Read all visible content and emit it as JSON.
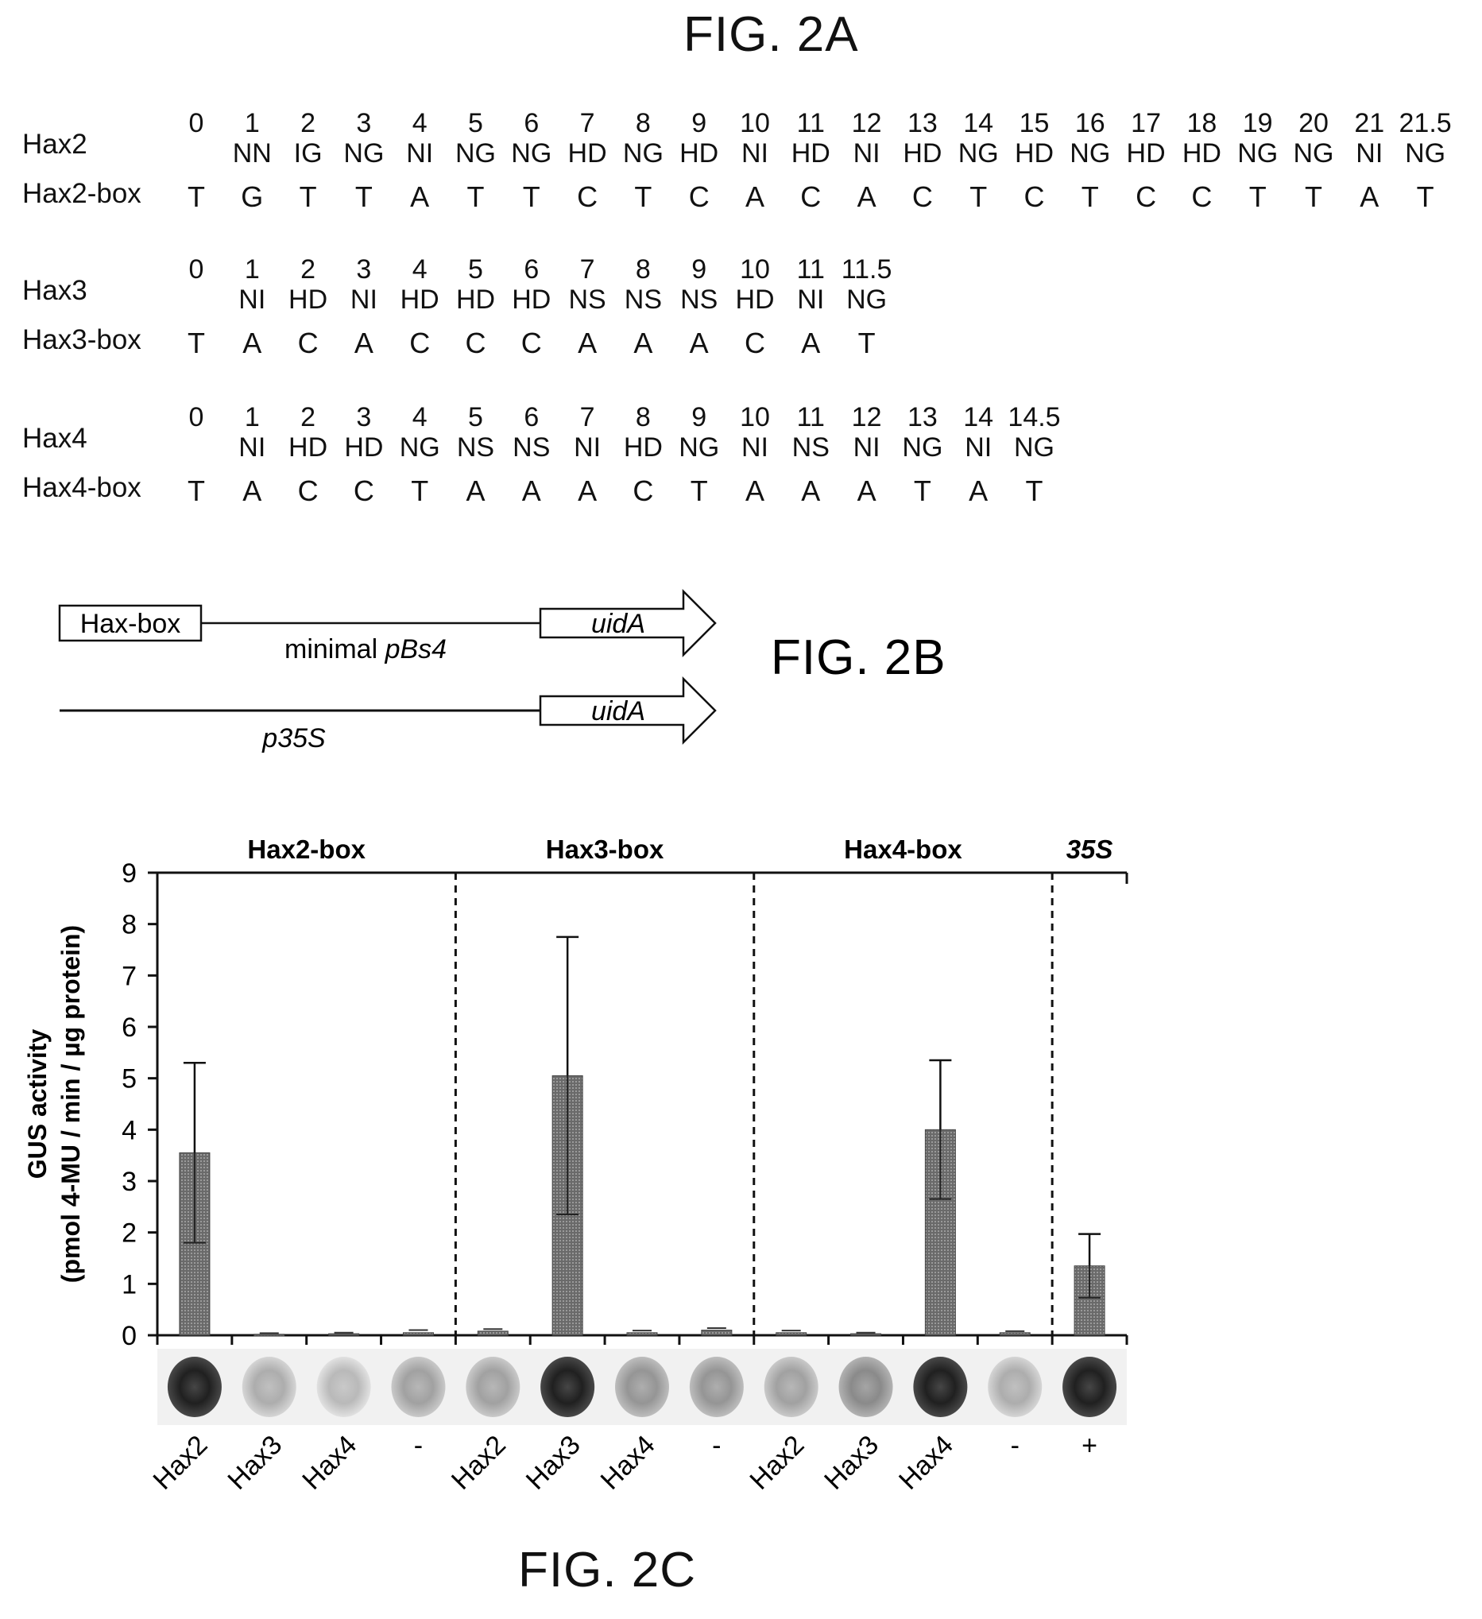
{
  "fig2a": {
    "title": "FIG. 2A",
    "rows": [
      {
        "name": "Hax2",
        "box_name": "Hax2-box",
        "numbers": [
          "0",
          "1",
          "2",
          "3",
          "4",
          "5",
          "6",
          "7",
          "8",
          "9",
          "10",
          "11",
          "12",
          "13",
          "14",
          "15",
          "16",
          "17",
          "18",
          "19",
          "20",
          "21",
          "21.5"
        ],
        "rvds": [
          "",
          "NN",
          "IG",
          "NG",
          "NI",
          "NG",
          "NG",
          "HD",
          "NG",
          "HD",
          "NI",
          "HD",
          "NI",
          "HD",
          "NG",
          "HD",
          "NG",
          "HD",
          "HD",
          "NG",
          "NG",
          "NI",
          "NG"
        ],
        "bases": [
          "T",
          "G",
          "T",
          "T",
          "A",
          "T",
          "T",
          "C",
          "T",
          "C",
          "A",
          "C",
          "A",
          "C",
          "T",
          "C",
          "T",
          "C",
          "C",
          "T",
          "T",
          "A",
          "T"
        ]
      },
      {
        "name": "Hax3",
        "box_name": "Hax3-box",
        "numbers": [
          "0",
          "1",
          "2",
          "3",
          "4",
          "5",
          "6",
          "7",
          "8",
          "9",
          "10",
          "11",
          "11.5"
        ],
        "rvds": [
          "",
          "NI",
          "HD",
          "NI",
          "HD",
          "HD",
          "HD",
          "NS",
          "NS",
          "NS",
          "HD",
          "NI",
          "NG"
        ],
        "bases": [
          "T",
          "A",
          "C",
          "A",
          "C",
          "C",
          "C",
          "A",
          "A",
          "A",
          "C",
          "A",
          "T"
        ]
      },
      {
        "name": "Hax4",
        "box_name": "Hax4-box",
        "numbers": [
          "0",
          "1",
          "2",
          "3",
          "4",
          "5",
          "6",
          "7",
          "8",
          "9",
          "10",
          "11",
          "12",
          "13",
          "14",
          "14.5"
        ],
        "rvds": [
          "",
          "NI",
          "HD",
          "HD",
          "NG",
          "NS",
          "NS",
          "NI",
          "HD",
          "NG",
          "NI",
          "NS",
          "NI",
          "NG",
          "NI",
          "NG"
        ],
        "bases": [
          "T",
          "A",
          "C",
          "C",
          "T",
          "A",
          "A",
          "A",
          "C",
          "T",
          "A",
          "A",
          "A",
          "T",
          "A",
          "T"
        ]
      }
    ]
  },
  "fig2b": {
    "title": "FIG. 2B",
    "box_label": "Hax-box",
    "promoter1_prefix": "minimal ",
    "promoter1_italic": "pBs4",
    "promoter2": "p35S",
    "gene": "uidA"
  },
  "fig2c": {
    "title": "FIG. 2C",
    "chart_data": {
      "type": "bar",
      "ylabel_line1": "GUS activity",
      "ylabel_line2": "(pmol 4-MU / min / µg protein)",
      "ylim": [
        0,
        9
      ],
      "yticks": [
        "0",
        "1",
        "2",
        "3",
        "4",
        "5",
        "6",
        "7",
        "8",
        "9"
      ],
      "groups": [
        {
          "label": "Hax2-box",
          "italic": false,
          "start": 0,
          "count": 4
        },
        {
          "label": "Hax3-box",
          "italic": false,
          "start": 4,
          "count": 4
        },
        {
          "label": "Hax4-box",
          "italic": false,
          "start": 8,
          "count": 4
        },
        {
          "label": "35S",
          "italic": true,
          "start": 12,
          "count": 1
        }
      ],
      "categories": [
        "Hax2",
        "Hax3",
        "Hax4",
        "-",
        "Hax2",
        "Hax3",
        "Hax4",
        "-",
        "Hax2",
        "Hax3",
        "Hax4",
        "-",
        "+"
      ],
      "values": [
        3.55,
        0.02,
        0.03,
        0.05,
        0.08,
        5.05,
        0.05,
        0.1,
        0.05,
        0.03,
        4.0,
        0.05,
        1.35
      ],
      "errors": [
        1.75,
        0.02,
        0.02,
        0.05,
        0.04,
        2.7,
        0.04,
        0.04,
        0.04,
        0.02,
        1.35,
        0.03,
        0.62
      ],
      "spot_intensity": [
        0.95,
        0.35,
        0.3,
        0.4,
        0.4,
        0.95,
        0.45,
        0.45,
        0.4,
        0.5,
        0.95,
        0.35,
        0.95
      ],
      "grid": false
    }
  }
}
